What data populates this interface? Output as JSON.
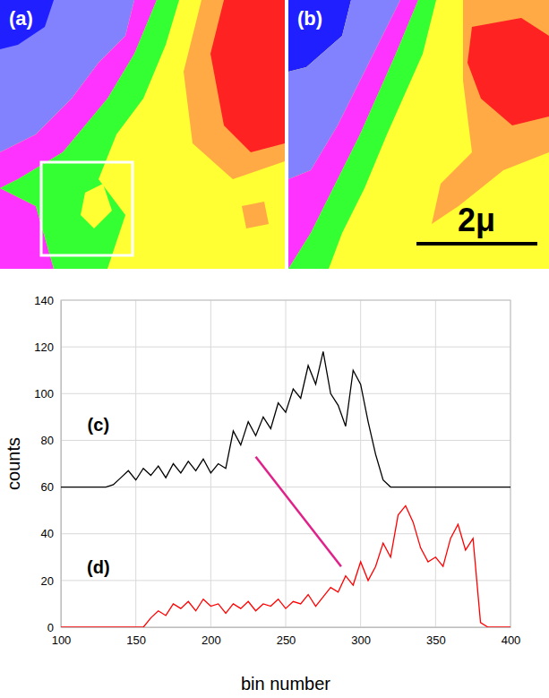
{
  "chart_data": {
    "type": "line",
    "x_label": "bin number",
    "y_label": "counts",
    "x": [
      100,
      105,
      110,
      115,
      120,
      125,
      130,
      135,
      140,
      145,
      150,
      155,
      160,
      165,
      170,
      175,
      180,
      185,
      190,
      195,
      200,
      205,
      210,
      215,
      220,
      225,
      230,
      235,
      240,
      245,
      250,
      255,
      260,
      265,
      270,
      275,
      280,
      285,
      290,
      295,
      300,
      305,
      310,
      315,
      320,
      325,
      330,
      335,
      340,
      345,
      350,
      355,
      360,
      365,
      370,
      375,
      380,
      385,
      390,
      395,
      400
    ],
    "series": [
      {
        "color": "#000000",
        "values": [
          60,
          60,
          60,
          60,
          60,
          60,
          60,
          61,
          64,
          67,
          63,
          68,
          65,
          69,
          64,
          70,
          66,
          71,
          67,
          72,
          66,
          70,
          68,
          84,
          78,
          88,
          82,
          90,
          85,
          96,
          92,
          102,
          98,
          112,
          104,
          118,
          100,
          95,
          86,
          110,
          104,
          88,
          74,
          63,
          60,
          60,
          60,
          60,
          60,
          60,
          60,
          60,
          60,
          60,
          60,
          60,
          60,
          60,
          60,
          60,
          60
        ]
      },
      {
        "color": "#ff0000",
        "values": [
          0,
          0,
          0,
          0,
          0,
          0,
          0,
          0,
          0,
          0,
          0,
          0,
          4,
          7,
          5,
          10,
          8,
          11,
          7,
          12,
          9,
          10,
          6,
          10,
          8,
          11,
          7,
          10,
          9,
          12,
          8,
          11,
          10,
          14,
          9,
          13,
          17,
          15,
          22,
          18,
          28,
          20,
          26,
          36,
          30,
          48,
          52,
          45,
          34,
          28,
          30,
          26,
          38,
          44,
          33,
          38,
          2,
          0,
          0,
          0,
          0
        ]
      }
    ],
    "xlim": [
      100,
      400
    ],
    "ylim": [
      0,
      140
    ],
    "xticks": [
      100,
      150,
      200,
      250,
      300,
      350,
      400
    ],
    "yticks": [
      0,
      20,
      40,
      60,
      80,
      100,
      120,
      140
    ],
    "grid": true,
    "annotations": [
      {
        "text": "(c)",
        "x": 125,
        "y": 86
      },
      {
        "text": "(d)",
        "x": 125,
        "y": 25
      }
    ],
    "arrow": {
      "x": [
        230,
        287
      ],
      "y": [
        73,
        26
      ],
      "color": "#e0218a"
    }
  },
  "figure": {
    "panels": [
      {
        "label": "(a)"
      },
      {
        "label": "(b)"
      }
    ],
    "scale_bar": "2μ"
  }
}
